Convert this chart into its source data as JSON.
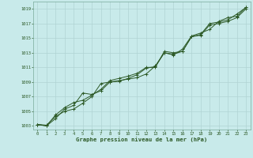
{
  "bg_color": "#c8eaea",
  "grid_color": "#b0d4d4",
  "line_color": "#2d5a27",
  "xlabel": "Graphe pression niveau de la mer (hPa)",
  "xlim": [
    -0.5,
    23.5
  ],
  "ylim": [
    1002.5,
    1020.0
  ],
  "yticks": [
    1003,
    1005,
    1007,
    1009,
    1011,
    1013,
    1015,
    1017,
    1019
  ],
  "xticks": [
    0,
    1,
    2,
    3,
    4,
    5,
    6,
    7,
    8,
    9,
    10,
    11,
    12,
    13,
    14,
    15,
    16,
    17,
    18,
    19,
    20,
    21,
    22,
    23
  ],
  "line1": [
    1003.2,
    1003.1,
    1004.3,
    1005.0,
    1005.3,
    1006.1,
    1007.0,
    1008.8,
    1009.0,
    1009.2,
    1009.4,
    1009.6,
    1010.1,
    1011.2,
    1013.0,
    1012.8,
    1013.2,
    1015.2,
    1015.5,
    1017.0,
    1017.2,
    1017.5,
    1018.3,
    1019.2
  ],
  "line2": [
    1003.2,
    1003.0,
    1004.0,
    1005.3,
    1005.8,
    1007.5,
    1007.3,
    1007.8,
    1009.0,
    1009.1,
    1009.5,
    1010.0,
    1010.9,
    1011.1,
    1013.0,
    1012.7,
    1013.5,
    1015.3,
    1015.7,
    1016.2,
    1017.3,
    1017.8,
    1018.0,
    1019.2
  ],
  "line3": [
    1003.2,
    1003.0,
    1004.5,
    1005.5,
    1006.2,
    1006.5,
    1007.2,
    1008.0,
    1009.2,
    1009.5,
    1009.8,
    1010.2,
    1011.0,
    1011.0,
    1013.2,
    1013.0,
    1013.2,
    1015.2,
    1015.4,
    1016.8,
    1017.0,
    1017.3,
    1017.8,
    1019.0
  ],
  "lw": 0.7,
  "markersize": 2.5,
  "tick_fontsize": 4.0,
  "xlabel_fontsize": 5.2
}
